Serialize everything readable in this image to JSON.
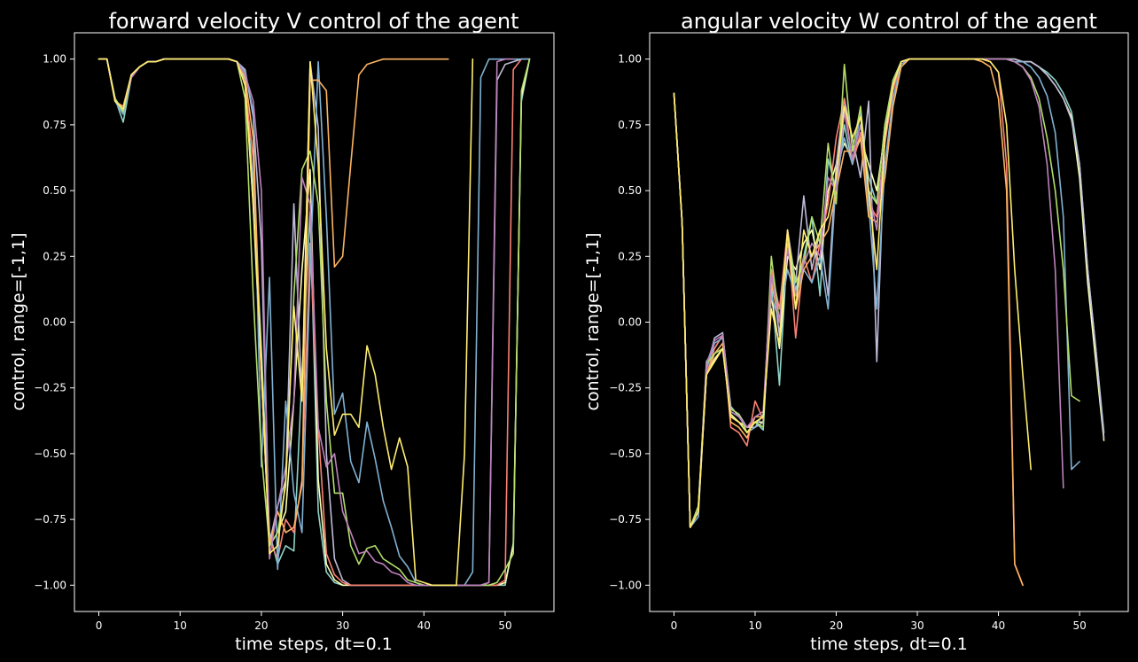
{
  "chart_data": [
    {
      "type": "line",
      "title": "forward velocity V control of the agent",
      "xlabel": "time steps, dt=0.1",
      "ylabel": "control, range=[-1,1]",
      "xlim": [
        -3,
        56
      ],
      "ylim": [
        -1.1,
        1.1
      ],
      "xticks": [
        0,
        10,
        20,
        30,
        40,
        50
      ],
      "yticks": [
        1.0,
        0.75,
        0.5,
        0.25,
        0.0,
        -0.25,
        -0.5,
        -0.75,
        -1.0
      ],
      "xtick_labels": [
        "0",
        "10",
        "20",
        "30",
        "40",
        "50"
      ],
      "ytick_labels": [
        "1.00",
        "0.75",
        "0.50",
        "0.25",
        "0.00",
        "−0.25",
        "−0.50",
        "−0.75",
        "−1.00"
      ],
      "grid": false,
      "series": [
        {
          "color": "#8dd3c7",
          "values": [
            1,
            1,
            0.85,
            0.76,
            0.93,
            0.97,
            0.99,
            0.99,
            1,
            1,
            1,
            1,
            1,
            1,
            1,
            1,
            1,
            0.99,
            0.92,
            0.52,
            -0.1,
            -0.8,
            -0.92,
            -0.85,
            -0.87,
            -0.2,
            0.42,
            -0.72,
            -0.95,
            -0.99,
            -1,
            -1,
            -1,
            -1,
            -1,
            -1,
            -1,
            -1,
            -1,
            -1,
            -1,
            -1,
            -1,
            -1,
            -1,
            -1,
            -1,
            -1,
            -1,
            -1,
            -1,
            -0.84,
            0.84,
            1
          ]
        },
        {
          "color": "#feffb3",
          "values": [
            1,
            1,
            0.85,
            0.8,
            0.94,
            0.97,
            0.99,
            0.99,
            1,
            1,
            1,
            1,
            1,
            1,
            1,
            1,
            1,
            0.99,
            0.93,
            0.44,
            -0.2,
            -0.85,
            -0.8,
            -0.72,
            -0.3,
            0.2,
            0.58,
            -0.6,
            -0.92,
            -0.98,
            -1,
            -1,
            -1,
            -1,
            -1,
            -1,
            -1,
            -1,
            -1,
            -1,
            -1,
            -1,
            -1,
            -1,
            -1,
            -1,
            -1,
            -1,
            -1,
            -1,
            -0.99,
            -0.85,
            0.86,
            1
          ]
        },
        {
          "color": "#bfbbd9",
          "values": [
            1,
            1,
            0.84,
            0.8,
            0.93,
            0.97,
            0.99,
            0.99,
            1,
            1,
            1,
            1,
            1,
            1,
            1,
            1,
            1,
            0.99,
            0.96,
            0.78,
            0.3,
            -0.84,
            -0.7,
            -0.6,
            0.45,
            -0.3,
            0.99,
            0.74,
            -0.5,
            -0.9,
            -0.98,
            -1,
            -1,
            -1,
            -1,
            -1,
            -1,
            -1,
            -1,
            -1,
            -1,
            -1,
            -1,
            -1,
            -1,
            -1,
            -1,
            -1,
            -0.99,
            0.92,
            0.98,
            0.99,
            1,
            1
          ]
        },
        {
          "color": "#fa8174",
          "values": [
            1,
            1,
            0.84,
            0.81,
            0.93,
            0.97,
            0.99,
            0.99,
            1,
            1,
            1,
            1,
            1,
            1,
            1,
            1,
            1,
            0.99,
            0.9,
            0.62,
            -0.2,
            -0.83,
            -0.9,
            -0.75,
            -0.8,
            -0.6,
            0.3,
            -0.4,
            -0.88,
            -0.96,
            -0.99,
            -1,
            -1,
            -1,
            -1,
            -1,
            -1,
            -1,
            -1,
            -1,
            -1,
            -1,
            -1,
            -1,
            -1,
            -1,
            -1,
            -1,
            -1,
            -1,
            -0.98,
            0.96,
            1,
            1
          ]
        },
        {
          "color": "#81b1d2",
          "values": [
            1,
            1,
            0.84,
            0.79,
            0.94,
            0.97,
            0.99,
            0.99,
            1,
            1,
            1,
            1,
            1,
            1,
            1,
            1,
            1,
            0.99,
            0.95,
            0.8,
            -0.55,
            0.17,
            -0.94,
            -0.3,
            -0.65,
            -0.8,
            0.2,
            0.99,
            0.4,
            -0.35,
            -0.27,
            -0.53,
            -0.61,
            -0.38,
            -0.52,
            -0.68,
            -0.78,
            -0.89,
            -0.93,
            -0.99,
            -1,
            -1,
            -1,
            -1,
            -1,
            -1,
            -0.95,
            0.93,
            1,
            1,
            1,
            1,
            1,
            1
          ]
        },
        {
          "color": "#fdb462",
          "values": [
            1,
            1,
            0.84,
            0.82,
            0.94,
            0.97,
            0.99,
            0.99,
            1,
            1,
            1,
            1,
            1,
            1,
            1,
            1,
            1,
            0.99,
            0.93,
            0.7,
            -0.2,
            -0.85,
            -0.72,
            -0.8,
            -0.78,
            -0.62,
            0.92,
            0.92,
            0.88,
            0.21,
            0.25,
            0.6,
            0.94,
            0.98,
            0.99,
            1,
            1,
            1,
            1,
            1,
            1,
            1,
            1,
            1
          ]
        },
        {
          "color": "#b3de69",
          "values": [
            1,
            1,
            0.85,
            0.8,
            0.94,
            0.97,
            0.99,
            0.99,
            1,
            1,
            1,
            1,
            1,
            1,
            1,
            1,
            1,
            0.99,
            0.85,
            0.1,
            -0.5,
            -0.85,
            -0.8,
            -0.62,
            0.1,
            0.58,
            0.65,
            0.45,
            -0.3,
            -0.65,
            -0.65,
            -0.85,
            -0.92,
            -0.86,
            -0.85,
            -0.9,
            -0.92,
            -0.94,
            -0.98,
            -0.99,
            -1,
            -1,
            -1,
            -1,
            -1,
            -1,
            -1,
            -1,
            -1,
            -0.99,
            -0.94,
            -0.88,
            0.88,
            1
          ]
        },
        {
          "color": "#bc82bd",
          "values": [
            1,
            1,
            0.84,
            0.81,
            0.93,
            0.97,
            0.99,
            0.99,
            1,
            1,
            1,
            1,
            1,
            1,
            1,
            1,
            1,
            0.99,
            0.94,
            0.84,
            0.5,
            -0.9,
            -0.7,
            -0.55,
            -0.3,
            0.55,
            0.45,
            -0.4,
            -0.55,
            -0.5,
            -0.72,
            -0.8,
            -0.88,
            -0.87,
            -0.91,
            -0.92,
            -0.95,
            -0.96,
            -0.99,
            -1,
            -1,
            -1,
            -1,
            -1,
            -1,
            -1,
            -1,
            -1,
            -0.99,
            0.99,
            1,
            1
          ]
        },
        {
          "color": "#ffed6f",
          "values": [
            1,
            1,
            0.84,
            0.81,
            0.94,
            0.97,
            0.99,
            0.99,
            1,
            1,
            1,
            1,
            1,
            1,
            1,
            1,
            1,
            0.99,
            0.9,
            0.45,
            -0.15,
            -0.88,
            -0.85,
            -0.6,
            0.06,
            -0.3,
            0.99,
            0.6,
            -0.1,
            -0.43,
            -0.35,
            -0.35,
            -0.4,
            -0.09,
            -0.2,
            -0.4,
            -0.56,
            -0.44,
            -0.55,
            -0.98,
            -0.99,
            -1,
            -1,
            -1,
            -1,
            -0.5,
            1
          ]
        }
      ]
    },
    {
      "type": "line",
      "title": "angular velocity W control of the agent",
      "xlabel": "time steps, dt=0.1",
      "ylabel": "control, range=[-1,1]",
      "xlim": [
        -3,
        56
      ],
      "ylim": [
        -1.1,
        1.1
      ],
      "xticks": [
        0,
        10,
        20,
        30,
        40,
        50
      ],
      "yticks": [
        1.0,
        0.75,
        0.5,
        0.25,
        0.0,
        -0.25,
        -0.5,
        -0.75,
        -1.0
      ],
      "xtick_labels": [
        "0",
        "10",
        "20",
        "30",
        "40",
        "50"
      ],
      "ytick_labels": [
        "1.00",
        "0.75",
        "0.50",
        "0.25",
        "0.00",
        "−0.25",
        "−0.50",
        "−0.75",
        "−1.00"
      ],
      "grid": false,
      "series": [
        {
          "color": "#8dd3c7",
          "values": [
            0.87,
            0.38,
            -0.78,
            -0.72,
            -0.15,
            -0.1,
            -0.05,
            -0.32,
            -0.36,
            -0.4,
            -0.38,
            -0.41,
            0.15,
            -0.24,
            0.3,
            0.12,
            0.25,
            0.4,
            0.1,
            0.62,
            0.5,
            0.75,
            0.6,
            0.72,
            0.55,
            0.45,
            0.75,
            0.9,
            0.99,
            1,
            1,
            1,
            1,
            1,
            1,
            1,
            1,
            1,
            1,
            1,
            1,
            1,
            1,
            0.99,
            0.99,
            0.97,
            0.95,
            0.92,
            0.87,
            0.8,
            0.6,
            0.2,
            -0.1,
            -0.42
          ]
        },
        {
          "color": "#feffb3",
          "values": [
            0.87,
            0.38,
            -0.78,
            -0.7,
            -0.2,
            -0.14,
            -0.1,
            -0.35,
            -0.38,
            -0.4,
            -0.38,
            -0.38,
            0.1,
            -0.1,
            0.25,
            0.2,
            0.3,
            0.35,
            0.2,
            0.5,
            0.6,
            0.68,
            0.62,
            0.7,
            0.6,
            0.5,
            0.72,
            0.9,
            0.99,
            1,
            1,
            1,
            1,
            1,
            1,
            1,
            1,
            1,
            1,
            1,
            1,
            1,
            1,
            0.99,
            0.99,
            0.97,
            0.94,
            0.9,
            0.85,
            0.78,
            0.55,
            0.15,
            -0.15,
            -0.45
          ]
        },
        {
          "color": "#bfbbd9",
          "values": [
            0.87,
            0.38,
            -0.78,
            -0.72,
            -0.18,
            -0.06,
            -0.04,
            -0.33,
            -0.35,
            -0.4,
            -0.4,
            -0.38,
            0.2,
            -0.05,
            0.35,
            0.15,
            0.48,
            0.2,
            0.35,
            0.1,
            0.6,
            0.85,
            0.7,
            0.55,
            0.84,
            -0.15,
            0.72,
            0.92,
            0.99,
            1,
            1,
            1,
            1,
            1,
            1,
            1,
            1,
            1,
            1,
            1,
            1,
            1,
            1,
            0.99,
            0.99,
            0.97,
            0.94,
            0.9,
            0.85,
            0.77,
            0.6,
            0.2,
            -0.1,
            -0.44
          ]
        },
        {
          "color": "#fa8174",
          "values": [
            0.87,
            0.38,
            -0.78,
            -0.72,
            -0.2,
            -0.1,
            -0.05,
            -0.4,
            -0.42,
            -0.47,
            -0.3,
            -0.37,
            0.2,
            0.05,
            0.35,
            -0.06,
            0.25,
            0.15,
            0.3,
            0.45,
            0.7,
            0.85,
            0.6,
            0.72,
            0.45,
            0.4,
            0.68,
            0.88,
            0.99,
            1,
            1,
            1,
            1,
            1,
            1,
            1,
            1,
            1,
            1,
            0.99,
            0.95,
            0.6,
            -0.92,
            -1
          ]
        },
        {
          "color": "#81b1d2",
          "values": [
            0.87,
            0.38,
            -0.78,
            -0.74,
            -0.18,
            -0.08,
            -0.06,
            -0.36,
            -0.38,
            -0.42,
            -0.4,
            -0.35,
            0.1,
            0.0,
            0.2,
            0.1,
            0.2,
            0.15,
            0.25,
            0.05,
            0.55,
            0.7,
            0.6,
            0.8,
            0.45,
            0.05,
            0.6,
            0.85,
            0.98,
            1,
            1,
            1,
            1,
            1,
            1,
            1,
            1,
            1,
            1,
            1,
            1,
            1,
            0.99,
            0.99,
            0.97,
            0.93,
            0.86,
            0.72,
            0.4,
            -0.56,
            -0.53
          ]
        },
        {
          "color": "#fdb462",
          "values": [
            0.87,
            0.38,
            -0.78,
            -0.7,
            -0.2,
            -0.12,
            -0.08,
            -0.38,
            -0.4,
            -0.44,
            -0.36,
            -0.36,
            0.15,
            0.0,
            0.3,
            0.05,
            0.2,
            0.25,
            0.3,
            0.35,
            0.5,
            0.65,
            0.65,
            0.7,
            0.4,
            0.38,
            0.55,
            0.82,
            0.97,
            1,
            1,
            1,
            1,
            1,
            1,
            1,
            1,
            1,
            0.99,
            0.97,
            0.85,
            0.5,
            -0.92,
            -1
          ]
        },
        {
          "color": "#b3de69",
          "values": [
            0.87,
            0.38,
            -0.78,
            -0.7,
            -0.16,
            -0.12,
            -0.1,
            -0.33,
            -0.35,
            -0.42,
            -0.38,
            -0.4,
            0.25,
            0.0,
            0.33,
            0.15,
            0.22,
            0.4,
            0.3,
            0.68,
            0.45,
            0.98,
            0.65,
            0.82,
            0.5,
            0.45,
            0.75,
            0.92,
            0.99,
            1,
            1,
            1,
            1,
            1,
            1,
            1,
            1,
            1,
            1,
            1,
            1,
            1,
            0.99,
            0.97,
            0.93,
            0.85,
            0.7,
            0.5,
            0.2,
            -0.28,
            -0.3
          ]
        },
        {
          "color": "#bc82bd",
          "values": [
            0.87,
            0.38,
            -0.78,
            -0.72,
            -0.16,
            -0.07,
            -0.05,
            -0.34,
            -0.36,
            -0.4,
            -0.36,
            -0.34,
            0.18,
            0.0,
            0.28,
            0.1,
            0.22,
            0.3,
            0.25,
            0.55,
            0.5,
            0.8,
            0.62,
            0.75,
            0.5,
            0.35,
            0.7,
            0.9,
            0.99,
            1,
            1,
            1,
            1,
            1,
            1,
            1,
            1,
            1,
            1,
            1,
            1,
            1,
            0.99,
            0.97,
            0.92,
            0.82,
            0.6,
            0.2,
            -0.63
          ]
        },
        {
          "color": "#ffed6f",
          "values": [
            0.87,
            0.38,
            -0.78,
            -0.72,
            -0.2,
            -0.15,
            -0.1,
            -0.36,
            -0.38,
            -0.42,
            -0.38,
            -0.36,
            0.05,
            -0.08,
            0.35,
            0.05,
            0.35,
            0.25,
            0.35,
            0.4,
            0.55,
            0.82,
            0.7,
            0.78,
            0.5,
            0.2,
            0.7,
            0.9,
            0.99,
            1,
            1,
            1,
            1,
            1,
            1,
            1,
            1,
            1,
            1,
            0.99,
            0.95,
            0.75,
            0.2,
            -0.2,
            -0.56
          ]
        }
      ]
    }
  ]
}
